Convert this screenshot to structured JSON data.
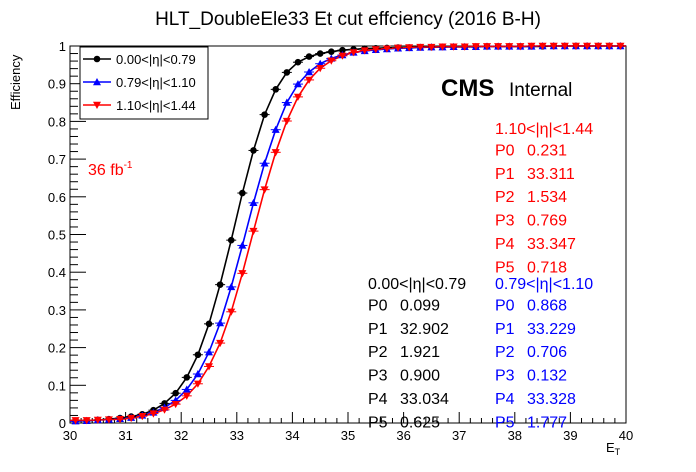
{
  "chart_data": {
    "type": "line",
    "title": "HLT_DoubleEle33 Et cut effciency (2016 B-H)",
    "xlabel": "E",
    "xlabel_sub": "T",
    "ylabel": "Efficiency",
    "xlim": [
      30,
      40
    ],
    "ylim": [
      0,
      1
    ],
    "x_ticks": [
      "30",
      "31",
      "32",
      "33",
      "34",
      "35",
      "36",
      "37",
      "38",
      "39",
      "40"
    ],
    "y_ticks": [
      "0",
      "0.1",
      "0.2",
      "0.3",
      "0.4",
      "0.5",
      "0.6",
      "0.7",
      "0.8",
      "0.9",
      "1"
    ],
    "grid": false,
    "legend_position": "top-left",
    "x": [
      30.1,
      30.3,
      30.5,
      30.7,
      30.9,
      31.1,
      31.3,
      31.5,
      31.7,
      31.9,
      32.1,
      32.3,
      32.5,
      32.7,
      32.9,
      33.1,
      33.3,
      33.5,
      33.7,
      33.9,
      34.1,
      34.3,
      34.5,
      34.7,
      34.9,
      35.1,
      35.3,
      35.5,
      35.7,
      35.9,
      36.1,
      36.3,
      36.5,
      36.7,
      36.9,
      37.1,
      37.3,
      37.5,
      37.7,
      37.9,
      38.1,
      38.3,
      38.5,
      38.7,
      38.9,
      39.1,
      39.3,
      39.5,
      39.7,
      39.9
    ],
    "series": [
      {
        "name": "0.00<|η|<0.79",
        "color": "#000000",
        "marker": "circle",
        "values": [
          0.006,
          0.006,
          0.008,
          0.01,
          0.013,
          0.017,
          0.023,
          0.034,
          0.052,
          0.079,
          0.121,
          0.181,
          0.263,
          0.367,
          0.485,
          0.61,
          0.723,
          0.818,
          0.885,
          0.93,
          0.957,
          0.972,
          0.98,
          0.985,
          0.989,
          0.991,
          0.993,
          0.994,
          0.995,
          0.996,
          0.996,
          0.997,
          0.997,
          0.998,
          0.998,
          0.998,
          0.998,
          0.999,
          0.999,
          0.999,
          0.999,
          0.999,
          0.999,
          1.0,
          1.0,
          1.0,
          1.0,
          1.0,
          1.0,
          1.0
        ]
      },
      {
        "name": "0.79<|η|<1.10",
        "color": "#0000ff",
        "marker": "triangle-up",
        "values": [
          0.005,
          0.006,
          0.008,
          0.009,
          0.011,
          0.014,
          0.02,
          0.028,
          0.041,
          0.06,
          0.089,
          0.13,
          0.188,
          0.265,
          0.361,
          0.471,
          0.584,
          0.689,
          0.778,
          0.85,
          0.899,
          0.931,
          0.953,
          0.967,
          0.976,
          0.983,
          0.987,
          0.99,
          0.992,
          0.994,
          0.995,
          0.996,
          0.997,
          0.997,
          0.998,
          0.998,
          0.998,
          0.999,
          0.999,
          0.999,
          0.999,
          0.999,
          1.0,
          1.0,
          1.0,
          1.0,
          1.0,
          1.0,
          1.0,
          1.0
        ]
      },
      {
        "name": "1.10<|η|<1.44",
        "color": "#ff0000",
        "marker": "triangle-down",
        "values": [
          0.007,
          0.007,
          0.008,
          0.009,
          0.01,
          0.013,
          0.018,
          0.025,
          0.035,
          0.05,
          0.072,
          0.104,
          0.15,
          0.212,
          0.295,
          0.397,
          0.509,
          0.619,
          0.718,
          0.801,
          0.865,
          0.91,
          0.941,
          0.961,
          0.974,
          0.983,
          0.988,
          0.991,
          0.993,
          0.995,
          0.996,
          0.997,
          0.997,
          0.998,
          0.998,
          0.998,
          0.999,
          0.999,
          0.999,
          0.999,
          0.999,
          1.0,
          1.0,
          1.0,
          1.0,
          1.0,
          1.0,
          1.0,
          1.0,
          1.0
        ]
      }
    ],
    "fit_params": [
      {
        "header": "0.00<|η|<0.79",
        "color": "#000000",
        "rows": [
          [
            "P0",
            "0.099"
          ],
          [
            "P1",
            "32.902"
          ],
          [
            "P2",
            "1.921"
          ],
          [
            "P3",
            "0.900"
          ],
          [
            "P4",
            "33.034"
          ],
          [
            "P5",
            "0.625"
          ]
        ]
      },
      {
        "header": "0.79<|η|<1.10",
        "color": "#0000ff",
        "rows": [
          [
            "P0",
            "0.868"
          ],
          [
            "P1",
            "33.229"
          ],
          [
            "P2",
            "0.706"
          ],
          [
            "P3",
            "0.132"
          ],
          [
            "P4",
            "33.328"
          ],
          [
            "P5",
            "1.777"
          ]
        ]
      },
      {
        "header": "1.10<|η|<1.44",
        "color": "#ff0000",
        "rows": [
          [
            "P0",
            "0.231"
          ],
          [
            "P1",
            "33.311"
          ],
          [
            "P2",
            "1.534"
          ],
          [
            "P3",
            "0.769"
          ],
          [
            "P4",
            "33.347"
          ],
          [
            "P5",
            "0.718"
          ]
        ]
      }
    ],
    "annotations": {
      "cms": "CMS",
      "internal": "Internal",
      "lumi": "36 fb",
      "lumi_sup": "-1"
    }
  }
}
